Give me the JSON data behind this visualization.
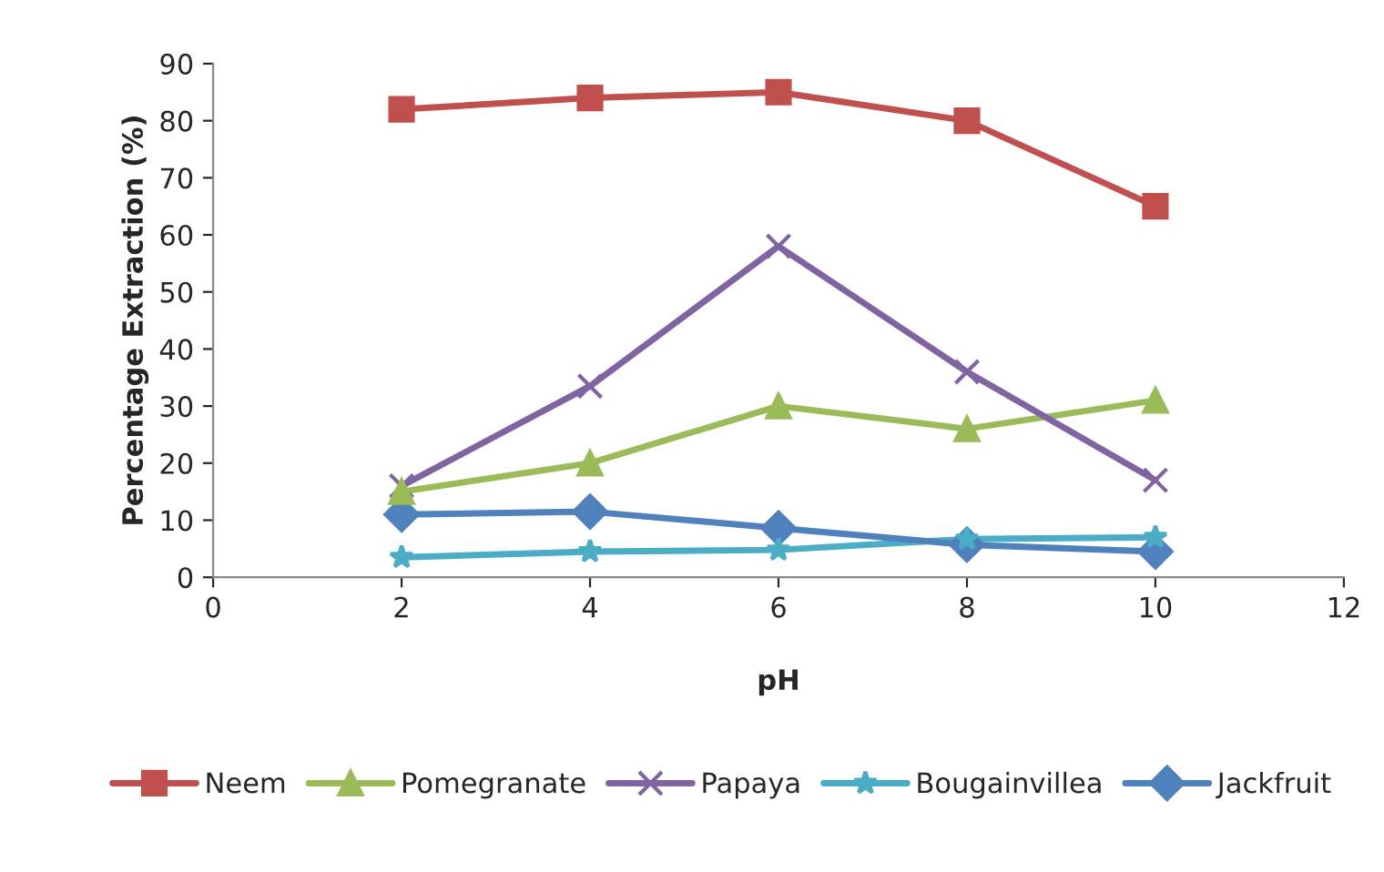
{
  "chart_data": {
    "type": "line",
    "xlabel": "pH",
    "ylabel": "Percentage Extraction (%)",
    "x": [
      2,
      4,
      6,
      8,
      10
    ],
    "xlim": [
      0,
      12
    ],
    "xticks": [
      0,
      2,
      4,
      6,
      8,
      10,
      12
    ],
    "ylim": [
      0,
      90
    ],
    "yticks": [
      0,
      10,
      20,
      30,
      40,
      50,
      60,
      70,
      80,
      90
    ],
    "grid": false,
    "legend": "bottom",
    "line_style": "solid",
    "series": [
      {
        "name": "Neem",
        "color": "#c0504d",
        "marker": "square",
        "values": [
          82,
          84,
          85,
          80,
          65
        ]
      },
      {
        "name": "Pomegranate",
        "color": "#9bbb59",
        "marker": "triangle",
        "values": [
          15,
          20,
          30,
          26,
          31
        ]
      },
      {
        "name": "Papaya",
        "color": "#8064a2",
        "marker": "cross",
        "values": [
          16,
          33.5,
          58,
          36,
          17
        ]
      },
      {
        "name": "Bougainvillea",
        "color": "#4bacc6",
        "marker": "star",
        "values": [
          3.5,
          4.5,
          4.8,
          6.7,
          7
        ]
      },
      {
        "name": "Jackfruit",
        "color": "#4f81bd",
        "marker": "diamond",
        "values": [
          11,
          11.5,
          8.6,
          5.7,
          4.5
        ]
      }
    ]
  }
}
